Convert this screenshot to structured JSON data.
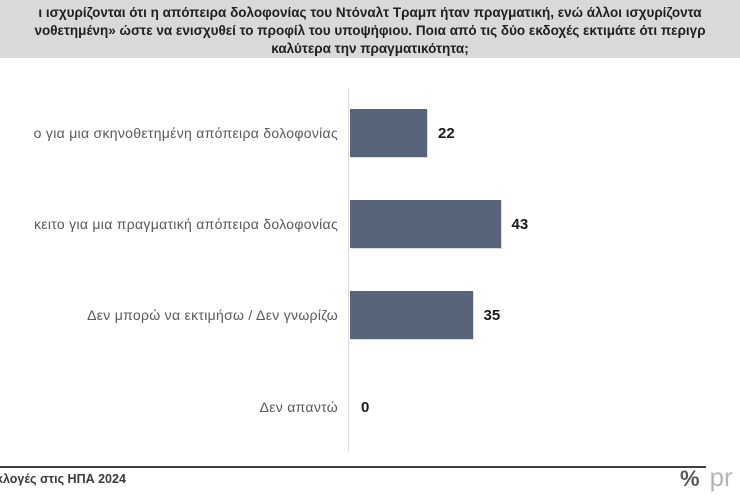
{
  "title": {
    "line1": "ι ισχυρίζονται ότι η απόπειρα δολοφονίας του Ντόναλτ Τραμπ ήταν πραγματική, ενώ άλλοι ισχυρίζοντα",
    "line2": "νοθετημένη» ώστε να ενισχυθεί το προφίλ του υποψήφιου. Ποια από τις δύο εκδοχές εκτιμάτε ότι περιγρ",
    "line3": "καλύτερα την πραγματικότητα;"
  },
  "chart_data": {
    "type": "bar",
    "orientation": "horizontal",
    "title": "ι ισχυρίζονται ότι η απόπειρα δολοφονίας του Ντόναλτ Τραμπ ήταν πραγματική, ενώ άλλοι ισχυρίζοντα νοθετημένη» ώστε να ενισχυθεί το προφίλ του υποψήφιου. Ποια από τις δύο εκδοχές εκτιμάτε ότι περιγρ καλύτερα την πραγματικότητα;",
    "categories": [
      "ο για μια σκηνοθετημένη απόπειρα δολοφονίας",
      "κειτο για μια πραγματική  απόπειρα δολοφονίας",
      "Δεν μπορώ να εκτιμήσω / Δεν γνωρίζω",
      "Δεν απαντώ"
    ],
    "values": [
      22,
      43,
      35,
      0
    ],
    "value_labels": [
      "22",
      "43",
      "35",
      "0"
    ],
    "xlim": [
      0,
      100
    ],
    "bar_color": "#57647a",
    "grid": "off",
    "legend": "none",
    "value_labels_position": "right-of-bar"
  },
  "footer": {
    "source_text": "κλογές στις ΗΠΑ 2024",
    "logo_percent_symbol": "%",
    "logo_text": "pr"
  },
  "colors": {
    "title_band_bg": "#d9d9d9",
    "title_text": "#1f1f1f",
    "bar": "#57647a",
    "category_text": "#595959",
    "value_text": "#1a1a1a",
    "axis_line": "#dcdcdc",
    "footer_line": "#3f3f3f",
    "footer_text": "#3b3b3b",
    "logo_dark_gray": "#595959",
    "logo_light_gray": "#b5b5b5"
  }
}
